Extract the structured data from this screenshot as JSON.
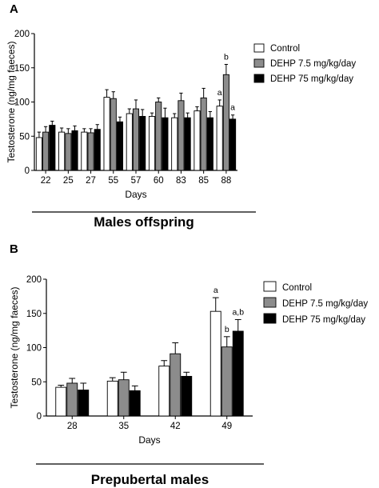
{
  "chart_data": [
    {
      "type": "bar",
      "panel_label": "A",
      "title": "",
      "ylabel": "Testosterone (ng/mg faeces)",
      "xlabel": "Days",
      "ylim": [
        0,
        200
      ],
      "yticks": [
        0,
        50,
        100,
        150,
        200
      ],
      "categories": [
        "22",
        "25",
        "27",
        "55",
        "57",
        "60",
        "83",
        "85",
        "88"
      ],
      "series": [
        {
          "name": "Control",
          "color": "#ffffff",
          "values": [
            48,
            56,
            56,
            107,
            83,
            79,
            77,
            87,
            94
          ],
          "errors": [
            8,
            6,
            5,
            11,
            7,
            5,
            6,
            6,
            9
          ]
        },
        {
          "name": "DEHP 7.5 mg/kg/day",
          "color": "#8c8c8c",
          "values": [
            56,
            54,
            55,
            105,
            90,
            100,
            102,
            106,
            140
          ],
          "errors": [
            8,
            7,
            6,
            10,
            13,
            6,
            11,
            14,
            15
          ]
        },
        {
          "name": "DEHP 75 mg/kg/day",
          "color": "#000000",
          "values": [
            66,
            58,
            60,
            71,
            79,
            77,
            77,
            77,
            75
          ],
          "errors": [
            6,
            7,
            7,
            7,
            10,
            14,
            7,
            9,
            6
          ]
        }
      ],
      "annotations": [
        {
          "category": "88",
          "series": "Control",
          "text": "a"
        },
        {
          "category": "88",
          "series": "DEHP 7.5 mg/kg/day",
          "text": "b"
        },
        {
          "category": "88",
          "series": "DEHP 75 mg/kg/day",
          "text": "a"
        }
      ],
      "legend": "right",
      "grid": false,
      "caption": "Males offspring"
    },
    {
      "type": "bar",
      "panel_label": "B",
      "title": "",
      "ylabel": "Testosterone (ng/mg faeces)",
      "xlabel": "Days",
      "ylim": [
        0,
        200
      ],
      "yticks": [
        0,
        50,
        100,
        150,
        200
      ],
      "categories": [
        "28",
        "35",
        "42",
        "49"
      ],
      "series": [
        {
          "name": "Control",
          "color": "#ffffff",
          "values": [
            42,
            51,
            73,
            153
          ],
          "errors": [
            3,
            5,
            8,
            20
          ]
        },
        {
          "name": "DEHP 7.5 mg/kg/day",
          "color": "#8c8c8c",
          "values": [
            48,
            53,
            91,
            101
          ],
          "errors": [
            7,
            11,
            16,
            15
          ]
        },
        {
          "name": "DEHP 75 mg/kg/day",
          "color": "#000000",
          "values": [
            38,
            37,
            58,
            124
          ],
          "errors": [
            10,
            7,
            6,
            17
          ]
        }
      ],
      "annotations": [
        {
          "category": "49",
          "series": "Control",
          "text": "a"
        },
        {
          "category": "49",
          "series": "DEHP 7.5 mg/kg/day",
          "text": "b"
        },
        {
          "category": "49",
          "series": "DEHP 75 mg/kg/day",
          "text": "a,b"
        }
      ],
      "legend": "right",
      "grid": false,
      "caption": "Prepubertal males"
    }
  ]
}
